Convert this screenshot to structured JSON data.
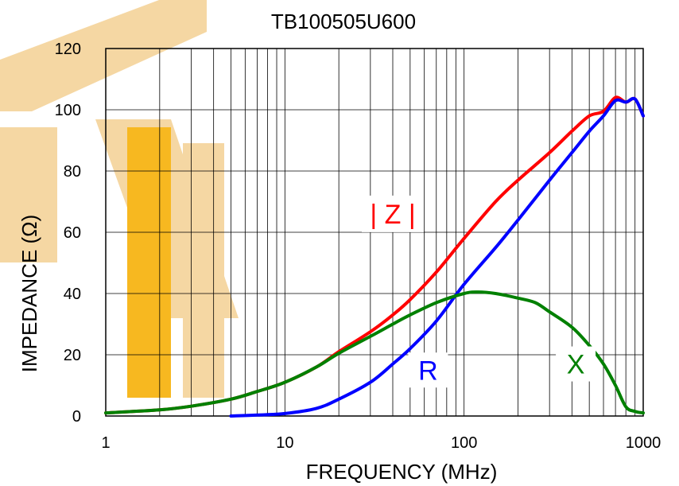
{
  "chart_data": {
    "type": "line",
    "title": "TB100505U600",
    "xlabel": "FREQUENCY (MHz)",
    "ylabel": "IMPEDANCE (Ω)",
    "x_scale": "log",
    "xlim": [
      1,
      1000
    ],
    "ylim": [
      0,
      120
    ],
    "x_ticks": [
      "1",
      "10",
      "100",
      "1000"
    ],
    "y_ticks": [
      "0",
      "20",
      "40",
      "60",
      "80",
      "100",
      "120"
    ],
    "grid": true,
    "watermark_colors": [
      "#f5d7a3",
      "#f7b820"
    ],
    "series": [
      {
        "name": "| Z |",
        "color": "#ff0000",
        "points": [
          [
            1,
            1
          ],
          [
            2,
            2
          ],
          [
            3,
            3.2
          ],
          [
            5,
            5.5
          ],
          [
            7,
            8
          ],
          [
            10,
            11
          ],
          [
            15,
            16
          ],
          [
            20,
            21
          ],
          [
            30,
            27.5
          ],
          [
            40,
            33
          ],
          [
            50,
            38
          ],
          [
            70,
            47
          ],
          [
            100,
            58
          ],
          [
            150,
            70
          ],
          [
            200,
            77
          ],
          [
            300,
            86
          ],
          [
            400,
            93
          ],
          [
            500,
            98
          ],
          [
            600,
            99.5
          ],
          [
            700,
            104
          ],
          [
            800,
            102.5
          ],
          [
            900,
            103.5
          ],
          [
            1000,
            98
          ]
        ]
      },
      {
        "name": "R",
        "color": "#0000ff",
        "points": [
          [
            5,
            0
          ],
          [
            7,
            0.3
          ],
          [
            10,
            0.8
          ],
          [
            15,
            2.5
          ],
          [
            20,
            5.5
          ],
          [
            30,
            11
          ],
          [
            40,
            17
          ],
          [
            50,
            22
          ],
          [
            70,
            31
          ],
          [
            100,
            43
          ],
          [
            150,
            55
          ],
          [
            200,
            64
          ],
          [
            300,
            77
          ],
          [
            400,
            86
          ],
          [
            500,
            93
          ],
          [
            600,
            98
          ],
          [
            700,
            103
          ],
          [
            800,
            102.5
          ],
          [
            900,
            103.5
          ],
          [
            1000,
            98
          ]
        ]
      },
      {
        "name": "X",
        "color": "#008000",
        "points": [
          [
            1,
            1
          ],
          [
            2,
            2
          ],
          [
            3,
            3.2
          ],
          [
            5,
            5.5
          ],
          [
            7,
            8
          ],
          [
            10,
            11
          ],
          [
            15,
            16
          ],
          [
            20,
            20.5
          ],
          [
            30,
            26
          ],
          [
            40,
            30
          ],
          [
            50,
            33
          ],
          [
            70,
            37
          ],
          [
            100,
            40
          ],
          [
            120,
            40.5
          ],
          [
            150,
            40
          ],
          [
            200,
            38.5
          ],
          [
            250,
            37
          ],
          [
            300,
            34
          ],
          [
            400,
            29
          ],
          [
            500,
            23
          ],
          [
            600,
            17
          ],
          [
            700,
            10
          ],
          [
            800,
            3
          ],
          [
            900,
            1.5
          ],
          [
            1000,
            1
          ]
        ]
      }
    ]
  }
}
